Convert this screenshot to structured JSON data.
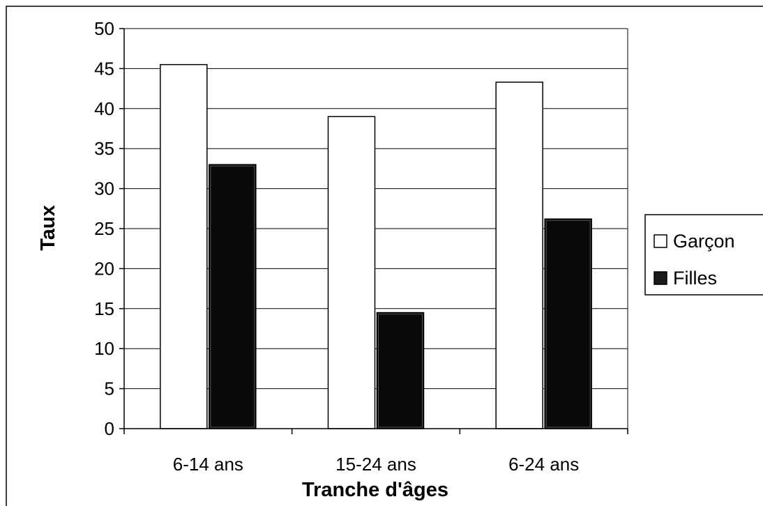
{
  "chart_data": {
    "type": "bar",
    "categories": [
      "6-14 ans",
      "15-24 ans",
      "6-24 ans"
    ],
    "series": [
      {
        "name": "Garçon",
        "values": [
          45.5,
          39,
          43.3
        ],
        "color": "#ffffff"
      },
      {
        "name": "Filles",
        "values": [
          33,
          14.5,
          26.2
        ],
        "color": "#0a0a0a"
      }
    ],
    "xlabel": "Tranche d'âges",
    "ylabel": "Taux",
    "ylim": [
      0,
      50
    ],
    "yticks": [
      0,
      5,
      10,
      15,
      20,
      25,
      30,
      35,
      40,
      45,
      50
    ],
    "ytick_labels": [
      "0",
      "5",
      "10",
      "15",
      "20",
      "25",
      "30",
      "35",
      "40",
      "45",
      "50"
    ],
    "grid": true,
    "legend_position": "right",
    "legend_labels": [
      "Garçon",
      "Filles"
    ]
  }
}
